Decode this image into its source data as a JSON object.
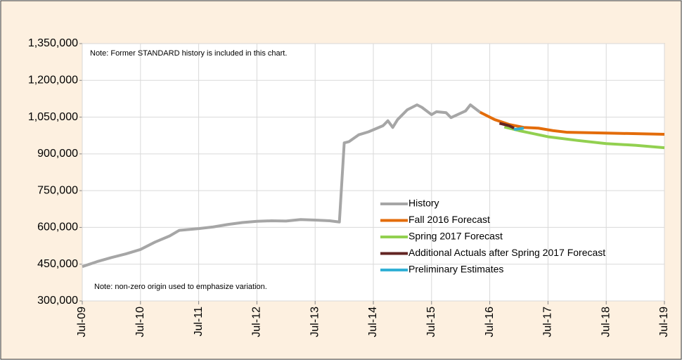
{
  "chart_data": {
    "type": "line",
    "notes": [
      "Note: Former STANDARD history is included in this chart.",
      "Note: non-zero origin used to emphasize variation."
    ],
    "xlim": [
      "2009-07",
      "2019-07"
    ],
    "xticks": [
      {
        "value": "2009-07",
        "label": "Jul-09"
      },
      {
        "value": "2010-07",
        "label": "Jul-10"
      },
      {
        "value": "2011-07",
        "label": "Jul-11"
      },
      {
        "value": "2012-07",
        "label": "Jul-12"
      },
      {
        "value": "2013-07",
        "label": "Jul-13"
      },
      {
        "value": "2014-07",
        "label": "Jul-14"
      },
      {
        "value": "2015-07",
        "label": "Jul-15"
      },
      {
        "value": "2016-07",
        "label": "Jul-16"
      },
      {
        "value": "2017-07",
        "label": "Jul-17"
      },
      {
        "value": "2018-07",
        "label": "Jul-18"
      },
      {
        "value": "2019-07",
        "label": "Jul-19"
      }
    ],
    "ylim": [
      300000,
      1350000
    ],
    "yticks": [
      {
        "value": 300000,
        "label": "300,000"
      },
      {
        "value": 450000,
        "label": "450,000"
      },
      {
        "value": 600000,
        "label": "600,000"
      },
      {
        "value": 750000,
        "label": "750,000"
      },
      {
        "value": 900000,
        "label": "900,000"
      },
      {
        "value": 1050000,
        "label": "1,050,000"
      },
      {
        "value": 1200000,
        "label": "1,200,000"
      },
      {
        "value": 1350000,
        "label": "1,350,000"
      }
    ],
    "grid": true,
    "series": [
      {
        "name": "History",
        "color": "#a6a6a6",
        "x": [
          "2009-07",
          "2009-10",
          "2010-01",
          "2010-04",
          "2010-07",
          "2010-10",
          "2011-01",
          "2011-03",
          "2011-07",
          "2011-10",
          "2012-01",
          "2012-04",
          "2012-07",
          "2012-10",
          "2013-01",
          "2013-04",
          "2013-07",
          "2013-10",
          "2013-12",
          "2014-01",
          "2014-02",
          "2014-04",
          "2014-06",
          "2014-09",
          "2014-10",
          "2014-11",
          "2014-12",
          "2015-02",
          "2015-04",
          "2015-05",
          "2015-07",
          "2015-08",
          "2015-10",
          "2015-11",
          "2016-02",
          "2016-03",
          "2016-05"
        ],
        "values": [
          440000,
          460000,
          477000,
          492000,
          510000,
          540000,
          565000,
          588000,
          595000,
          602000,
          612000,
          620000,
          625000,
          627000,
          626000,
          632000,
          630000,
          627000,
          622000,
          945000,
          950000,
          978000,
          990000,
          1015000,
          1035000,
          1008000,
          1040000,
          1080000,
          1100000,
          1090000,
          1060000,
          1072000,
          1068000,
          1048000,
          1075000,
          1100000,
          1070000
        ]
      },
      {
        "name": "Fall 2016 Forecast",
        "color": "#e36c0a",
        "x": [
          "2016-05",
          "2016-08",
          "2016-11",
          "2017-02",
          "2017-05",
          "2017-08",
          "2017-11",
          "2018-07",
          "2019-07"
        ],
        "values": [
          1070000,
          1040000,
          1020000,
          1008000,
          1005000,
          995000,
          988000,
          985000,
          980000
        ]
      },
      {
        "name": "Spring 2017 Forecast",
        "color": "#92d050",
        "x": [
          "2016-10",
          "2017-01",
          "2017-07",
          "2018-01",
          "2018-07",
          "2019-01",
          "2019-07"
        ],
        "values": [
          1010000,
          995000,
          970000,
          955000,
          942000,
          935000,
          925000
        ]
      },
      {
        "name": "Additional Actuals after Spring 2017 Forecast",
        "color": "#632523",
        "x": [
          "2016-09",
          "2016-11",
          "2016-12"
        ],
        "values": [
          1025000,
          1015000,
          1005000
        ]
      },
      {
        "name": "Preliminary Estimates",
        "color": "#31b0d5",
        "x": [
          "2016-12",
          "2017-01",
          "2017-02"
        ],
        "values": [
          1000000,
          1002000,
          1005000
        ]
      }
    ]
  }
}
